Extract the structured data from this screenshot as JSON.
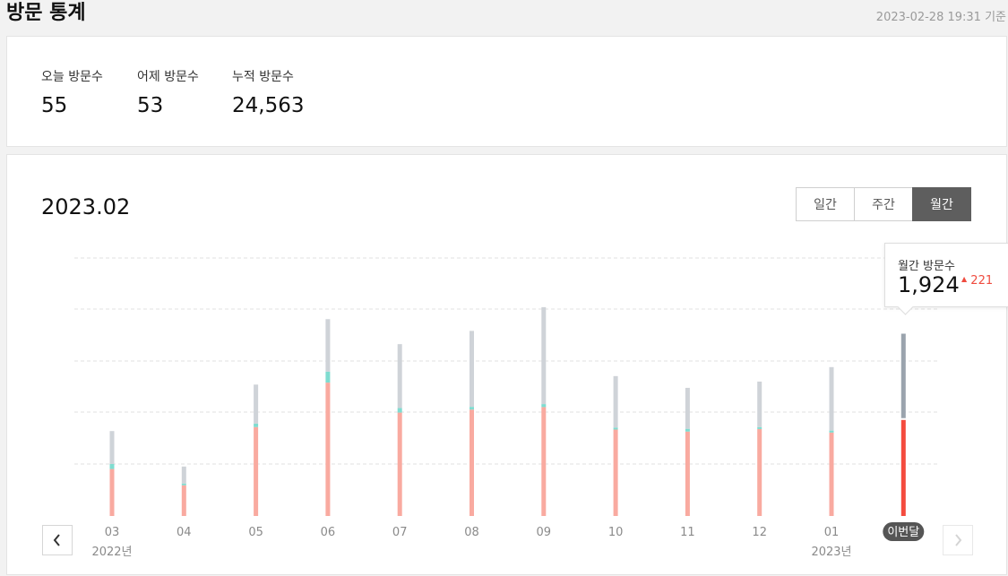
{
  "header": {
    "title": "방문 통계",
    "timestamp": "2023-02-28 19:31 기준"
  },
  "summary": {
    "today_label": "오늘 방문수",
    "today_value": "55",
    "yesterday_label": "어제 방문수",
    "yesterday_value": "53",
    "total_label": "누적 방문수",
    "total_value": "24,563"
  },
  "chart_header": {
    "period": "2023.02",
    "tabs": [
      "일간",
      "주간",
      "월간"
    ],
    "active_tab": "월간"
  },
  "tooltip": {
    "label": "월간 방문수",
    "value": "1,924",
    "delta": "221",
    "delta_icon": "triangle-up-icon"
  },
  "colors": {
    "bar_bottom": "#f9aaa0",
    "bar_mid": "#7fdcd0",
    "bar_top": "#cfd3d8",
    "current_bottom": "#f44b3e",
    "current_top": "#9aa3ad",
    "gridline": "#e2e2e2"
  },
  "chart_data": {
    "type": "bar",
    "stacked": true,
    "categories": [
      "03",
      "04",
      "05",
      "06",
      "07",
      "08",
      "09",
      "10",
      "11",
      "12",
      "01",
      "이번달"
    ],
    "year_labels": [
      {
        "category": "03",
        "text": "2022년"
      },
      {
        "category": "01",
        "text": "2023년"
      }
    ],
    "current_index": 11,
    "series": [
      {
        "values": [
          940,
          615,
          1780,
          2670,
          2070,
          2130,
          2180,
          1730,
          1690,
          1740,
          1670,
          1924
        ]
      },
      {
        "values": [
          100,
          35,
          70,
          220,
          90,
          55,
          60,
          40,
          55,
          40,
          40,
          35
        ]
      },
      {
        "values": [
          660,
          340,
          780,
          1050,
          1280,
          1520,
          1940,
          1030,
          820,
          910,
          1270,
          1690
        ]
      }
    ],
    "ylim": [
      0,
      5200
    ],
    "grid": true
  }
}
